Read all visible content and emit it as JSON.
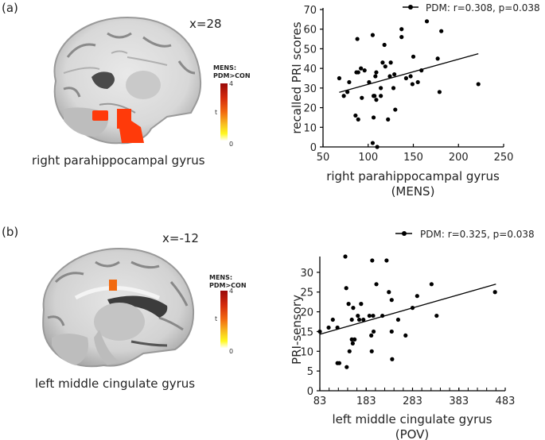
{
  "panels": [
    {
      "label": "(a)",
      "slice": "x=28",
      "region": "right parahippocampal gyrus",
      "colorbar": {
        "title_line1": "MENS:",
        "title_line2": "PDM>CON",
        "max": "4",
        "min": "0",
        "axis": "t"
      }
    },
    {
      "label": "(b)",
      "slice": "x=-12",
      "region": "left middle cingulate gyrus",
      "colorbar": {
        "title_line1": "MENS:",
        "title_line2": "PDM>CON",
        "max": "4",
        "min": "0",
        "axis": "t"
      }
    }
  ],
  "colors": {
    "activation": "#ff3a0a",
    "activation_b": "#f26a10",
    "points": "#000000",
    "axis": "#000000"
  },
  "chart_data": [
    {
      "type": "scatter",
      "title": "",
      "legend": "PDM: r=0.308, p=0.038",
      "legend_position": "top-right",
      "xlabel_line1": "right parahippocampal gyrus",
      "xlabel_line2": "(MENS)",
      "ylabel": "recalled PRI scores",
      "xlim": [
        50,
        250
      ],
      "ylim": [
        0,
        70
      ],
      "xticks": [
        "50",
        "100",
        "150",
        "200",
        "250"
      ],
      "yticks": [
        "0",
        "10",
        "20",
        "30",
        "40",
        "50",
        "60",
        "70"
      ],
      "grid": false,
      "points": [
        [
          68,
          35
        ],
        [
          73,
          26
        ],
        [
          77,
          28
        ],
        [
          79,
          33
        ],
        [
          86,
          16
        ],
        [
          87,
          38
        ],
        [
          88,
          55
        ],
        [
          89,
          38
        ],
        [
          89,
          14
        ],
        [
          92,
          40
        ],
        [
          93,
          25
        ],
        [
          96,
          39
        ],
        [
          101,
          33
        ],
        [
          105,
          57
        ],
        [
          105,
          2
        ],
        [
          106,
          15
        ],
        [
          106,
          26
        ],
        [
          107,
          26
        ],
        [
          108,
          36
        ],
        [
          109,
          38
        ],
        [
          109,
          24
        ],
        [
          110,
          0
        ],
        [
          114,
          26
        ],
        [
          114,
          30
        ],
        [
          116,
          43
        ],
        [
          118,
          52
        ],
        [
          119,
          41
        ],
        [
          122,
          14
        ],
        [
          124,
          36
        ],
        [
          125,
          43
        ],
        [
          128,
          30
        ],
        [
          129,
          37
        ],
        [
          130,
          19
        ],
        [
          137,
          60
        ],
        [
          137,
          56
        ],
        [
          142,
          35
        ],
        [
          147,
          36
        ],
        [
          149,
          32
        ],
        [
          150,
          46
        ],
        [
          155,
          33
        ],
        [
          159,
          39
        ],
        [
          165,
          64
        ],
        [
          177,
          45
        ],
        [
          179,
          28
        ],
        [
          181,
          59
        ],
        [
          222,
          32
        ]
      ],
      "fit_line": [
        [
          68,
          27.8
        ],
        [
          222,
          47.5
        ]
      ]
    },
    {
      "type": "scatter",
      "title": "",
      "legend": "PDM: r=0.325, p=0.038",
      "legend_position": "top-right",
      "xlabel_line1": "left middle cingulate gyrus",
      "xlabel_line2": "(POV)",
      "ylabel": "PRI-sensory",
      "xlim": [
        83,
        483
      ],
      "ylim": [
        0,
        34
      ],
      "xticks": [
        "83",
        "183",
        "283",
        "383",
        "483"
      ],
      "yticks": [
        "0",
        "5",
        "10",
        "15",
        "20",
        "25",
        "30"
      ],
      "grid": false,
      "points": [
        [
          83,
          15
        ],
        [
          102,
          16
        ],
        [
          111,
          18
        ],
        [
          121,
          16
        ],
        [
          121,
          7
        ],
        [
          125,
          7
        ],
        [
          138,
          34
        ],
        [
          140,
          26
        ],
        [
          141,
          6
        ],
        [
          145,
          22
        ],
        [
          147,
          10
        ],
        [
          152,
          18
        ],
        [
          152,
          13
        ],
        [
          154,
          12
        ],
        [
          155,
          21
        ],
        [
          158,
          13
        ],
        [
          165,
          19
        ],
        [
          168,
          18
        ],
        [
          172,
          22
        ],
        [
          177,
          18
        ],
        [
          190,
          19
        ],
        [
          194,
          14
        ],
        [
          195,
          10
        ],
        [
          196,
          33
        ],
        [
          198,
          19
        ],
        [
          199,
          15
        ],
        [
          205,
          27
        ],
        [
          218,
          19
        ],
        [
          227,
          33
        ],
        [
          232,
          25
        ],
        [
          238,
          23
        ],
        [
          238,
          15
        ],
        [
          239,
          8
        ],
        [
          252,
          18
        ],
        [
          268,
          14
        ],
        [
          283,
          21
        ],
        [
          293,
          24
        ],
        [
          324,
          27
        ],
        [
          335,
          19
        ],
        [
          461,
          25
        ]
      ],
      "fit_line": [
        [
          83,
          14.3
        ],
        [
          463,
          27
        ]
      ]
    }
  ]
}
